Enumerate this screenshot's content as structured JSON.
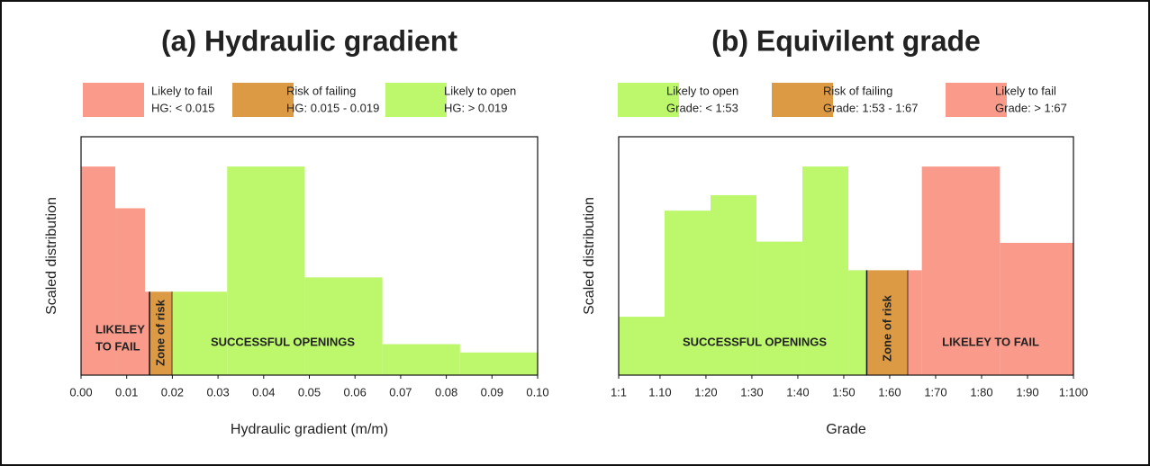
{
  "chart_data": [
    {
      "type": "histogram",
      "title": "(a) Hydraulic gradient",
      "x_label": "Hydraulic gradient (m/m)",
      "y_label": "Scaled distribution",
      "legend": [
        {
          "name": "Likely to fail",
          "detail": "HG: < 0.015",
          "color": "#fa9a8a"
        },
        {
          "name": "Risk of failing",
          "detail": "HG: 0.015 - 0.019",
          "color": "#dc9a44"
        },
        {
          "name": "Likely to open",
          "detail": "HG: > 0.019",
          "color": "#bcf76c"
        }
      ],
      "bins": [
        0,
        0.0075,
        0.014,
        0.015,
        0.02,
        0.032,
        0.049,
        0.066,
        0.083,
        0.1
      ],
      "counts": [
        0.875,
        0.7,
        0.35,
        0.35,
        0.35,
        0.875,
        0.41,
        0.13,
        0.095
      ],
      "colors": [
        "#fa9a8a",
        "#fa9a8a",
        "#fa9a8a",
        "#dc9a44",
        "#bcf76c",
        "#bcf76c",
        "#bcf76c",
        "#bcf76c",
        "#bcf76c"
      ],
      "xlim": [
        0,
        0.1
      ],
      "ylim": [
        0,
        1
      ],
      "xticks": [
        {
          "value": 0,
          "label": "0.00"
        },
        0.01,
        0.02,
        0.03,
        0.04,
        0.05,
        0.06,
        0.07,
        0.08,
        0.09,
        {
          "value": 0.1,
          "label": "0.10"
        }
      ],
      "annotations": [
        "LIKELEY",
        "TO FAIL",
        "Zone of risk",
        "SUCCESSFUL OPENINGS"
      ]
    },
    {
      "type": "histogram",
      "title": "(b) Equivilent grade",
      "x_label": "Grade",
      "y_label": "Scaled distribution",
      "legend": [
        {
          "name": "Likely to open",
          "detail": "Grade: < 1:53",
          "color": "#bcf76c"
        },
        {
          "name": "Risk of failing",
          "detail": "Grade: 1:53 - 1:67",
          "color": "#dc9a44"
        },
        {
          "name": "Likely to fail",
          "detail": "Grade: > 1:67",
          "color": "#fa9a8a"
        }
      ],
      "bins": [
        1,
        11,
        21,
        31,
        41,
        51,
        55,
        64,
        67,
        84,
        100
      ],
      "counts": [
        0.245,
        0.69,
        0.755,
        0.56,
        0.875,
        0.44,
        0.44,
        0.44,
        0.875,
        0.555
      ],
      "colors": [
        "#bcf76c",
        "#bcf76c",
        "#bcf76c",
        "#bcf76c",
        "#bcf76c",
        "#bcf76c",
        "#dc9a44",
        "#fa9a8a",
        "#fa9a8a",
        "#fa9a8a"
      ],
      "xlim": [
        1,
        100
      ],
      "ylim": [
        0,
        1
      ],
      "xticks": [
        {
          "value": 1,
          "label": "1:1"
        },
        {
          "value": 10,
          "label": "1.10"
        },
        {
          "value": 20,
          "label": "1:20"
        },
        {
          "value": 30,
          "label": "1:30"
        },
        {
          "value": 40,
          "label": "1:40"
        },
        {
          "value": 50,
          "label": "1:50"
        },
        {
          "value": 60,
          "label": "1:60"
        },
        {
          "value": 70,
          "label": "1:70"
        },
        {
          "value": 80,
          "label": "1:80"
        },
        {
          "value": 90,
          "label": "1:90"
        },
        {
          "value": 100,
          "label": "1:100"
        }
      ],
      "annotations": [
        "SUCCESSFUL OPENINGS",
        "Zone of risk",
        "LIKELEY TO FAIL"
      ]
    }
  ]
}
